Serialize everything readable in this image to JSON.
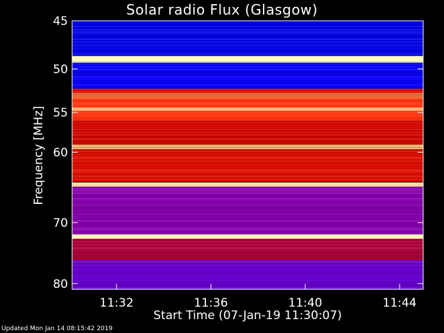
{
  "chart_data": {
    "type": "heatmap",
    "title": "Solar radio Flux (Glasgow)",
    "xlabel": "Start Time (07-Jan-19 11:30:07)",
    "ylabel": "Frequency [MHz]",
    "footer": "Updated Mon Jan 14 08:15:42 2019",
    "x_unit": "time (HH:MM)",
    "x_range": [
      "11:30:07",
      "11:45:00"
    ],
    "x_ticks": [
      "11:32",
      "11:36",
      "11:40",
      "11:44"
    ],
    "y_unit": "MHz",
    "y_range": [
      45,
      81
    ],
    "y_scale": "log",
    "y_ticks": [
      45,
      50,
      55,
      60,
      70,
      80
    ],
    "colormap": [
      "#0000a0",
      "#0000ff",
      "#8000c0",
      "#c00000",
      "#ff2000",
      "#ff8040",
      "#ffffc0"
    ],
    "bands": [
      {
        "freq": [
          45,
          48.6
        ],
        "level": 0.12
      },
      {
        "freq": [
          48.6,
          49.3
        ],
        "level": 1.0
      },
      {
        "freq": [
          49.3,
          52.2
        ],
        "level": 0.18
      },
      {
        "freq": [
          52.2,
          52.7
        ],
        "level": 0.55
      },
      {
        "freq": [
          52.7,
          53.4
        ],
        "level": 0.8
      },
      {
        "freq": [
          53.4,
          56
        ],
        "level": 0.7
      },
      {
        "freq": [
          54.4,
          54.8
        ],
        "level": 0.9
      },
      {
        "freq": [
          56,
          59
        ],
        "level": 0.55
      },
      {
        "freq": [
          59,
          59.6
        ],
        "level": 0.9
      },
      {
        "freq": [
          59.6,
          64
        ],
        "level": 0.58
      },
      {
        "freq": [
          64.1,
          64.7
        ],
        "level": 0.95
      },
      {
        "freq": [
          64.7,
          71.8
        ],
        "level": 0.35
      },
      {
        "freq": [
          71.8,
          72.5
        ],
        "level": 1.0
      },
      {
        "freq": [
          72.5,
          76
        ],
        "level": 0.45
      },
      {
        "freq": [
          76,
          81
        ],
        "level": 0.3
      }
    ]
  }
}
